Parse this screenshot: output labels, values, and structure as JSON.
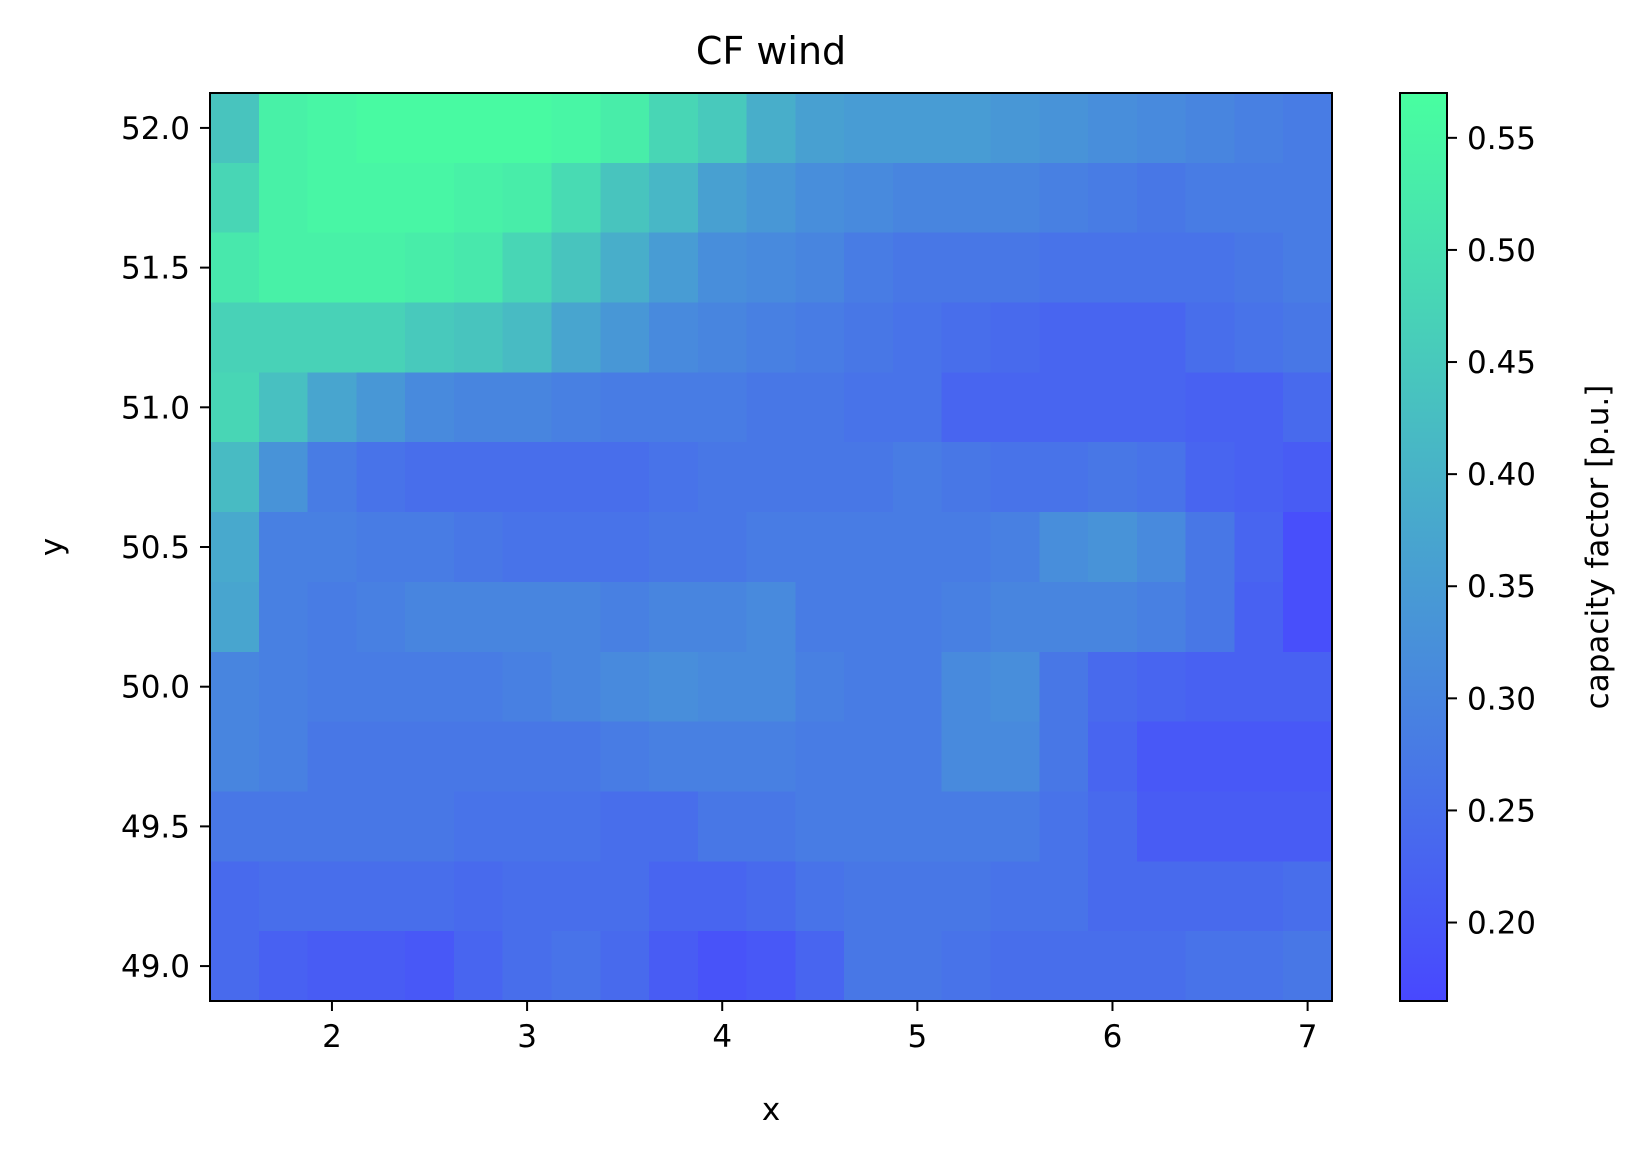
{
  "chart_data": {
    "type": "heatmap",
    "title": "CF wind",
    "xlabel": "x",
    "ylabel": "y",
    "colorbar_label": "capacity factor [p.u.]",
    "x": [
      1.5,
      1.75,
      2.0,
      2.25,
      2.5,
      2.75,
      3.0,
      3.25,
      3.5,
      3.75,
      4.0,
      4.25,
      4.5,
      4.75,
      5.0,
      5.25,
      5.5,
      5.75,
      6.0,
      6.25,
      6.5,
      6.75,
      7.0
    ],
    "y": [
      52.0,
      51.75,
      51.5,
      51.25,
      51.0,
      50.75,
      50.5,
      50.25,
      50.0,
      49.75,
      49.5,
      49.25,
      49.0
    ],
    "values": [
      [
        0.44,
        0.54,
        0.55,
        0.56,
        0.56,
        0.56,
        0.56,
        0.55,
        0.53,
        0.48,
        0.45,
        0.39,
        0.36,
        0.35,
        0.35,
        0.35,
        0.34,
        0.33,
        0.32,
        0.31,
        0.3,
        0.29,
        0.28
      ],
      [
        0.48,
        0.54,
        0.55,
        0.55,
        0.55,
        0.54,
        0.53,
        0.49,
        0.44,
        0.41,
        0.36,
        0.34,
        0.32,
        0.31,
        0.3,
        0.3,
        0.3,
        0.29,
        0.28,
        0.27,
        0.28,
        0.28,
        0.28
      ],
      [
        0.52,
        0.54,
        0.54,
        0.54,
        0.53,
        0.52,
        0.48,
        0.44,
        0.39,
        0.35,
        0.32,
        0.31,
        0.3,
        0.28,
        0.27,
        0.27,
        0.27,
        0.26,
        0.26,
        0.26,
        0.26,
        0.27,
        0.28
      ],
      [
        0.47,
        0.47,
        0.47,
        0.47,
        0.45,
        0.44,
        0.42,
        0.37,
        0.34,
        0.31,
        0.3,
        0.29,
        0.28,
        0.27,
        0.26,
        0.25,
        0.24,
        0.23,
        0.23,
        0.23,
        0.25,
        0.26,
        0.27
      ],
      [
        0.48,
        0.43,
        0.37,
        0.34,
        0.31,
        0.3,
        0.3,
        0.29,
        0.28,
        0.28,
        0.28,
        0.27,
        0.27,
        0.26,
        0.26,
        0.23,
        0.23,
        0.23,
        0.23,
        0.23,
        0.22,
        0.22,
        0.24
      ],
      [
        0.42,
        0.33,
        0.28,
        0.26,
        0.25,
        0.25,
        0.25,
        0.25,
        0.25,
        0.26,
        0.27,
        0.27,
        0.27,
        0.27,
        0.28,
        0.27,
        0.26,
        0.26,
        0.27,
        0.26,
        0.23,
        0.22,
        0.21
      ],
      [
        0.38,
        0.29,
        0.29,
        0.28,
        0.28,
        0.27,
        0.26,
        0.26,
        0.26,
        0.27,
        0.27,
        0.28,
        0.28,
        0.28,
        0.28,
        0.28,
        0.29,
        0.32,
        0.33,
        0.31,
        0.27,
        0.23,
        0.18
      ],
      [
        0.37,
        0.29,
        0.28,
        0.29,
        0.3,
        0.3,
        0.3,
        0.3,
        0.29,
        0.3,
        0.3,
        0.31,
        0.28,
        0.28,
        0.28,
        0.29,
        0.3,
        0.3,
        0.3,
        0.29,
        0.27,
        0.22,
        0.18
      ],
      [
        0.3,
        0.29,
        0.28,
        0.28,
        0.28,
        0.28,
        0.29,
        0.3,
        0.31,
        0.32,
        0.31,
        0.31,
        0.29,
        0.28,
        0.28,
        0.31,
        0.32,
        0.27,
        0.24,
        0.23,
        0.22,
        0.22,
        0.22
      ],
      [
        0.3,
        0.29,
        0.27,
        0.27,
        0.27,
        0.27,
        0.27,
        0.27,
        0.28,
        0.29,
        0.29,
        0.29,
        0.28,
        0.28,
        0.28,
        0.31,
        0.31,
        0.27,
        0.23,
        0.2,
        0.2,
        0.2,
        0.2
      ],
      [
        0.27,
        0.27,
        0.27,
        0.27,
        0.27,
        0.26,
        0.26,
        0.26,
        0.25,
        0.25,
        0.27,
        0.27,
        0.28,
        0.28,
        0.28,
        0.28,
        0.28,
        0.26,
        0.24,
        0.21,
        0.21,
        0.21,
        0.21
      ],
      [
        0.24,
        0.25,
        0.25,
        0.25,
        0.25,
        0.24,
        0.25,
        0.25,
        0.25,
        0.23,
        0.23,
        0.24,
        0.26,
        0.27,
        0.27,
        0.27,
        0.26,
        0.26,
        0.24,
        0.24,
        0.24,
        0.24,
        0.25
      ],
      [
        0.24,
        0.22,
        0.21,
        0.21,
        0.2,
        0.23,
        0.25,
        0.26,
        0.24,
        0.21,
        0.19,
        0.2,
        0.23,
        0.27,
        0.27,
        0.26,
        0.25,
        0.25,
        0.25,
        0.25,
        0.26,
        0.26,
        0.27
      ]
    ],
    "xlim": [
      1.375,
      7.125
    ],
    "ylim": [
      48.875,
      52.125
    ],
    "xticks": [
      2,
      3,
      4,
      5,
      6,
      7
    ],
    "xtick_labels": [
      "2",
      "3",
      "4",
      "5",
      "6",
      "7"
    ],
    "yticks": [
      49.0,
      49.5,
      50.0,
      50.5,
      51.0,
      51.5,
      52.0
    ],
    "ytick_labels": [
      "49.0",
      "49.5",
      "50.0",
      "50.5",
      "51.0",
      "51.5",
      "52.0"
    ],
    "colorbar": {
      "vmin": 0.165,
      "vmax": 0.57,
      "ticks": [
        0.2,
        0.25,
        0.3,
        0.35,
        0.4,
        0.45,
        0.5,
        0.55
      ],
      "tick_labels": [
        "0.20",
        "0.25",
        "0.30",
        "0.35",
        "0.40",
        "0.45",
        "0.50",
        "0.55"
      ],
      "color_low": "#4848ff",
      "color_high": "#48ffa0"
    },
    "grid": false
  }
}
